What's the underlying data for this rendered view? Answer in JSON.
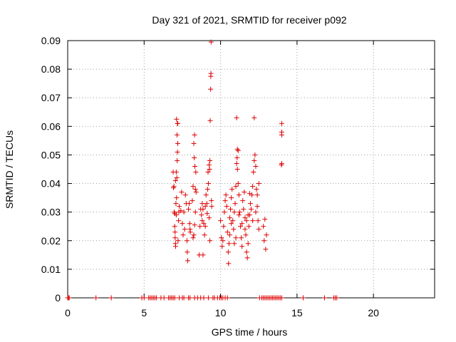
{
  "chart_data": {
    "type": "scatter",
    "title": "Day 321 of 2021, SRMTID for receiver p092",
    "xlabel": "GPS time / hours",
    "ylabel": "SRMTID / TECUs",
    "xlim": [
      0,
      24
    ],
    "ylim": [
      0,
      0.09
    ],
    "grid": true,
    "x_ticks": [
      0,
      5,
      10,
      15,
      20
    ],
    "x_tick_labels": [
      "0",
      "5",
      "10",
      "15",
      "20"
    ],
    "y_ticks": [
      0,
      0.01,
      0.02,
      0.03,
      0.04,
      0.05,
      0.06,
      0.07,
      0.08,
      0.09
    ],
    "y_tick_labels": [
      "0",
      "0.01",
      "0.02",
      "0.03",
      "0.04",
      "0.05",
      "0.06",
      "0.07",
      "0.08",
      "0.09"
    ],
    "marker": "+",
    "marker_color": "#dd0000",
    "series": [
      {
        "name": "SRMTID",
        "zero_x": [
          0.0,
          0.05,
          0.1,
          1.85,
          2.85,
          4.85,
          5.0,
          5.3,
          5.4,
          5.5,
          5.6,
          5.7,
          5.8,
          6.1,
          6.3,
          6.6,
          6.7,
          6.8,
          6.9,
          7.0,
          7.3,
          7.5,
          7.6,
          7.9,
          8.0,
          8.3,
          8.5,
          8.7,
          8.9,
          9.2,
          9.5,
          9.6,
          9.8,
          9.95,
          10.05,
          10.15,
          10.3,
          10.45,
          12.55,
          12.7,
          12.8,
          12.9,
          13.0,
          13.1,
          13.2,
          13.3,
          13.4,
          13.5,
          13.6,
          13.7,
          13.8,
          13.9,
          14.0,
          15.4,
          16.8,
          17.4,
          17.5,
          17.6
        ],
        "points": [
          [
            6.9,
            0.044
          ],
          [
            6.92,
            0.0385
          ],
          [
            6.95,
            0.039
          ],
          [
            6.97,
            0.03
          ],
          [
            7.0,
            0.0295
          ],
          [
            7.0,
            0.025
          ],
          [
            7.02,
            0.023
          ],
          [
            7.03,
            0.021
          ],
          [
            7.05,
            0.019
          ],
          [
            7.06,
            0.018
          ],
          [
            7.08,
            0.033
          ],
          [
            7.1,
            0.029
          ],
          [
            7.12,
            0.035
          ],
          [
            7.14,
            0.042
          ],
          [
            7.16,
            0.048
          ],
          [
            7.18,
            0.051
          ],
          [
            7.2,
            0.054
          ],
          [
            7.15,
            0.057
          ],
          [
            7.18,
            0.061
          ],
          [
            7.2,
            0.061
          ],
          [
            7.12,
            0.0625
          ],
          [
            7.22,
            0.02
          ],
          [
            7.25,
            0.027
          ],
          [
            7.27,
            0.03
          ],
          [
            7.3,
            0.032
          ],
          [
            7.05,
            0.041
          ],
          [
            7.1,
            0.044
          ],
          [
            7.4,
            0.0305
          ],
          [
            7.45,
            0.037
          ],
          [
            7.5,
            0.026
          ],
          [
            7.55,
            0.022
          ],
          [
            7.6,
            0.03
          ],
          [
            7.65,
            0.024
          ],
          [
            7.7,
            0.036
          ],
          [
            7.75,
            0.033
          ],
          [
            7.8,
            0.02
          ],
          [
            7.82,
            0.016
          ],
          [
            7.85,
            0.013
          ],
          [
            7.9,
            0.031
          ],
          [
            7.95,
            0.033
          ],
          [
            7.98,
            0.026
          ],
          [
            8.0,
            0.024
          ],
          [
            8.02,
            0.023
          ],
          [
            8.15,
            0.034
          ],
          [
            8.2,
            0.039
          ],
          [
            8.25,
            0.054
          ],
          [
            8.3,
            0.057
          ],
          [
            8.28,
            0.049
          ],
          [
            8.32,
            0.046
          ],
          [
            8.35,
            0.038
          ],
          [
            8.38,
            0.044
          ],
          [
            8.4,
            0.037
          ],
          [
            8.2,
            0.021
          ],
          [
            8.25,
            0.022
          ],
          [
            8.3,
            0.0255
          ],
          [
            8.35,
            0.03
          ],
          [
            8.6,
            0.015
          ],
          [
            8.65,
            0.025
          ],
          [
            8.7,
            0.031
          ],
          [
            8.75,
            0.029
          ],
          [
            8.8,
            0.033
          ],
          [
            8.85,
            0.015
          ],
          [
            8.9,
            0.026
          ],
          [
            8.95,
            0.022
          ],
          [
            9.0,
            0.032
          ],
          [
            9.05,
            0.036
          ],
          [
            9.1,
            0.033
          ],
          [
            9.12,
            0.0295
          ],
          [
            9.15,
            0.038
          ],
          [
            9.18,
            0.044
          ],
          [
            9.2,
            0.04
          ],
          [
            9.25,
            0.0465
          ],
          [
            9.28,
            0.045
          ],
          [
            9.3,
            0.048
          ],
          [
            9.32,
            0.062
          ],
          [
            9.35,
            0.073
          ],
          [
            9.36,
            0.0775
          ],
          [
            9.37,
            0.0785
          ],
          [
            9.38,
            0.0895
          ],
          [
            9.3,
            0.02
          ],
          [
            9.25,
            0.028
          ],
          [
            9.4,
            0.034
          ],
          [
            9.42,
            0.032
          ],
          [
            8.8,
            0.027
          ],
          [
            8.85,
            0.031
          ],
          [
            9.0,
            0.025
          ],
          [
            10.0,
            0.027
          ],
          [
            10.05,
            0.021
          ],
          [
            10.1,
            0.018
          ],
          [
            10.15,
            0.02
          ],
          [
            10.2,
            0.025
          ],
          [
            10.25,
            0.03
          ],
          [
            10.3,
            0.034
          ],
          [
            10.35,
            0.036
          ],
          [
            10.4,
            0.032
          ],
          [
            10.45,
            0.023
          ],
          [
            10.5,
            0.016
          ],
          [
            10.52,
            0.012
          ],
          [
            10.55,
            0.019
          ],
          [
            10.6,
            0.028
          ],
          [
            10.65,
            0.031
          ],
          [
            10.7,
            0.035
          ],
          [
            10.75,
            0.038
          ],
          [
            10.8,
            0.027
          ],
          [
            10.85,
            0.024
          ],
          [
            10.9,
            0.03
          ],
          [
            10.95,
            0.033
          ],
          [
            11.0,
            0.039
          ],
          [
            11.05,
            0.047
          ],
          [
            11.08,
            0.049
          ],
          [
            11.1,
            0.045
          ],
          [
            11.15,
            0.04
          ],
          [
            11.2,
            0.036
          ],
          [
            11.25,
            0.03
          ],
          [
            11.3,
            0.025
          ],
          [
            11.35,
            0.021
          ],
          [
            11.4,
            0.018
          ],
          [
            11.45,
            0.034
          ],
          [
            11.5,
            0.031
          ],
          [
            11.55,
            0.037
          ],
          [
            11.6,
            0.028
          ],
          [
            11.65,
            0.022
          ],
          [
            11.7,
            0.016
          ],
          [
            11.75,
            0.014
          ],
          [
            11.8,
            0.019
          ],
          [
            11.85,
            0.025
          ],
          [
            11.9,
            0.029
          ],
          [
            11.95,
            0.033
          ],
          [
            12.0,
            0.031
          ],
          [
            12.05,
            0.036
          ],
          [
            12.1,
            0.039
          ],
          [
            12.15,
            0.044
          ],
          [
            12.2,
            0.048
          ],
          [
            12.25,
            0.05
          ],
          [
            12.3,
            0.046
          ],
          [
            12.35,
            0.038
          ],
          [
            12.4,
            0.032
          ],
          [
            12.45,
            0.027
          ],
          [
            12.5,
            0.024
          ],
          [
            11.1,
            0.052
          ],
          [
            11.15,
            0.0515
          ],
          [
            11.05,
            0.063
          ],
          [
            12.2,
            0.063
          ],
          [
            11.9,
            0.0365
          ],
          [
            11.8,
            0.029
          ],
          [
            11.7,
            0.027
          ],
          [
            11.6,
            0.024
          ],
          [
            12.4,
            0.036
          ],
          [
            12.5,
            0.04
          ],
          [
            12.3,
            0.03
          ],
          [
            12.1,
            0.027
          ],
          [
            11.4,
            0.026
          ],
          [
            11.2,
            0.029
          ],
          [
            11.0,
            0.021
          ],
          [
            10.9,
            0.019
          ],
          [
            10.7,
            0.026
          ],
          [
            10.6,
            0.022
          ],
          [
            12.8,
            0.025
          ],
          [
            12.85,
            0.02
          ],
          [
            12.9,
            0.0275
          ],
          [
            12.95,
            0.017
          ],
          [
            13.0,
            0.022
          ],
          [
            14.0,
            0.061
          ],
          [
            14.0,
            0.058
          ],
          [
            14.0,
            0.057
          ],
          [
            14.0,
            0.047
          ],
          [
            13.98,
            0.0465
          ]
        ]
      }
    ]
  }
}
